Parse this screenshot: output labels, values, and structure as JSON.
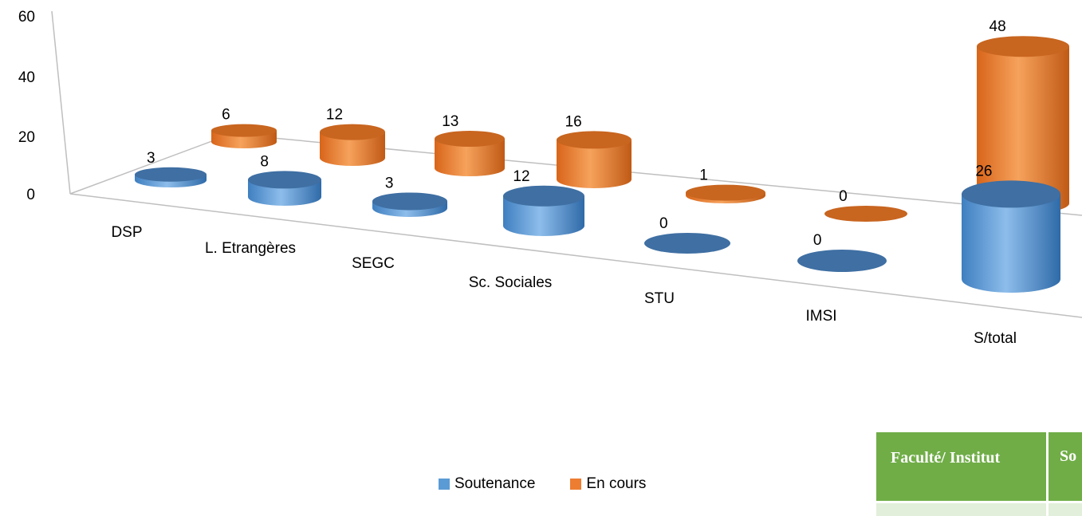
{
  "chart_data": {
    "type": "bar",
    "title": "",
    "xlabel": "",
    "ylabel": "",
    "ylim": [
      0,
      60
    ],
    "yticks": [
      "0",
      "20",
      "40",
      "60"
    ],
    "categories": [
      "DSP",
      "L. Etrangères",
      "SEGC",
      "Sc. Sociales",
      "STU",
      "IMSI",
      "S/total"
    ],
    "series": [
      {
        "name": "Soutenance",
        "color": "#5b9bd5",
        "values": [
          3,
          8,
          3,
          12,
          0,
          0,
          26
        ]
      },
      {
        "name": "En cours",
        "color": "#ed7d31",
        "values": [
          6,
          12,
          13,
          16,
          1,
          0,
          48
        ]
      }
    ],
    "legend_position": "bottom"
  },
  "legend": {
    "soutenance": "Soutenance",
    "en_cours": "En cours"
  },
  "table": {
    "header_col1": "Faculté/ Institut",
    "header_col2": "So"
  }
}
